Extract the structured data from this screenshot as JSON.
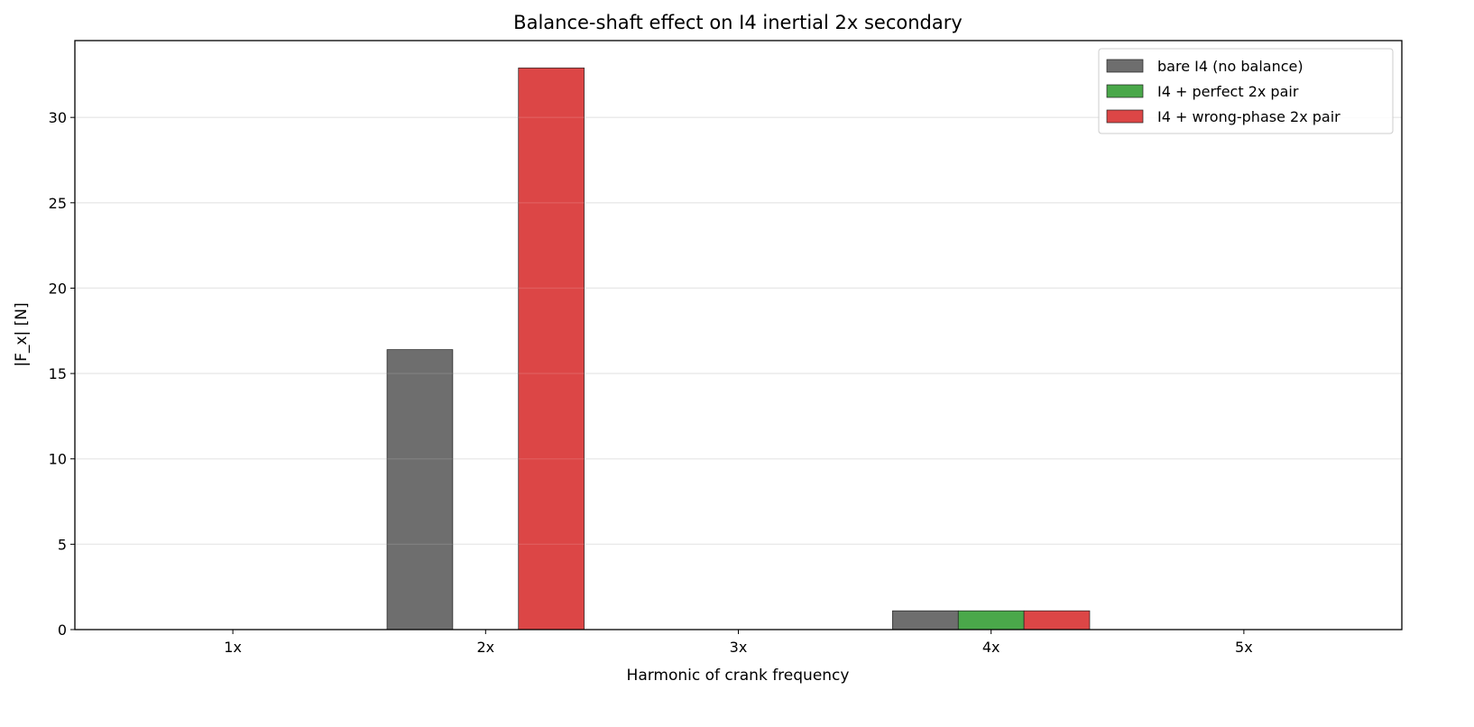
{
  "chart_data": {
    "type": "bar",
    "title": "Balance-shaft effect on I4 inertial 2x secondary",
    "xlabel": "Harmonic of crank frequency",
    "ylabel": "|F_x|  [N]",
    "categories": [
      "1x",
      "2x",
      "3x",
      "4x",
      "5x"
    ],
    "ylim": [
      0,
      34.5
    ],
    "yticks": [
      0,
      5,
      10,
      15,
      20,
      25,
      30
    ],
    "grid": "y",
    "legend_position": "top-right",
    "series": [
      {
        "name": "bare I4 (no balance)",
        "color": "#6e6e6e",
        "values": [
          0,
          16.4,
          0,
          1.1,
          0
        ]
      },
      {
        "name": "I4 + perfect 2x pair",
        "color": "#4aa84a",
        "values": [
          0,
          0,
          0,
          1.1,
          0
        ]
      },
      {
        "name": "I4 + wrong-phase 2x pair",
        "color": "#dc4646",
        "values": [
          0,
          32.9,
          0,
          1.1,
          0
        ]
      }
    ]
  }
}
